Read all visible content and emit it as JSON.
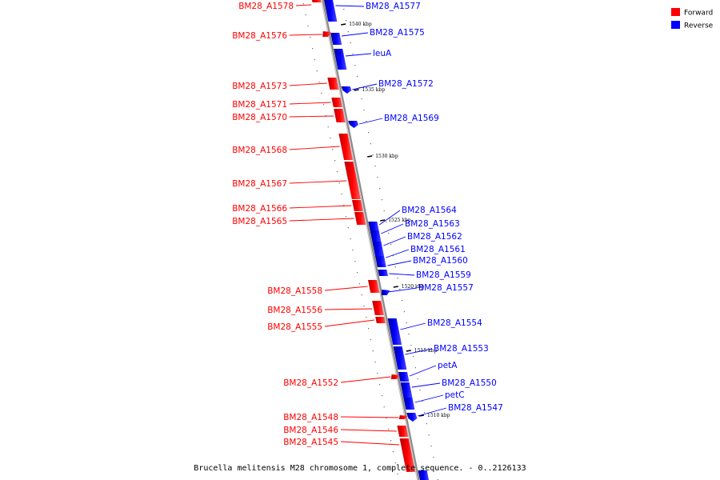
{
  "caption": "Brucella melitensis M28 chromosome 1, complete sequence. - 0..2126133",
  "legend": {
    "forward": {
      "label": "Forward",
      "color": "#ff0000"
    },
    "reverse": {
      "label": "Reverse",
      "color": "#0000ff"
    }
  },
  "colors": {
    "forward_dark": "#b80000",
    "forward_light": "#ff5a5a",
    "reverse_dark": "#00008a",
    "reverse_light": "#4a4aff",
    "backbone": "#8c8c8c"
  },
  "ticks": [
    "1540 kbp",
    "1535 kbp",
    "1530 kbp",
    "1525 kbp",
    "1520 kbp",
    "1515 kbp",
    "1510 kbp"
  ],
  "forward_genes": [
    "BM28_A1578",
    "BM28_A1576",
    "BM28_A1573",
    "BM28_A1571",
    "BM28_A1570",
    "BM28_A1568",
    "BM28_A1567",
    "BM28_A1566",
    "BM28_A1565",
    "BM28_A1558",
    "BM28_A1556",
    "BM28_A1555",
    "BM28_A1552",
    "BM28_A1548",
    "BM28_A1546",
    "BM28_A1545"
  ],
  "reverse_genes": [
    "BM28_A1577",
    "BM28_A1575",
    "leuA",
    "BM28_A1572",
    "BM28_A1569",
    "BM28_A1564",
    "BM28_A1563",
    "BM28_A1562",
    "BM28_A1561",
    "BM28_A1560",
    "BM28_A1559",
    "BM28_A1557",
    "BM28_A1554",
    "BM28_A1553",
    "petA",
    "BM28_A1550",
    "petC",
    "BM28_A1547"
  ]
}
